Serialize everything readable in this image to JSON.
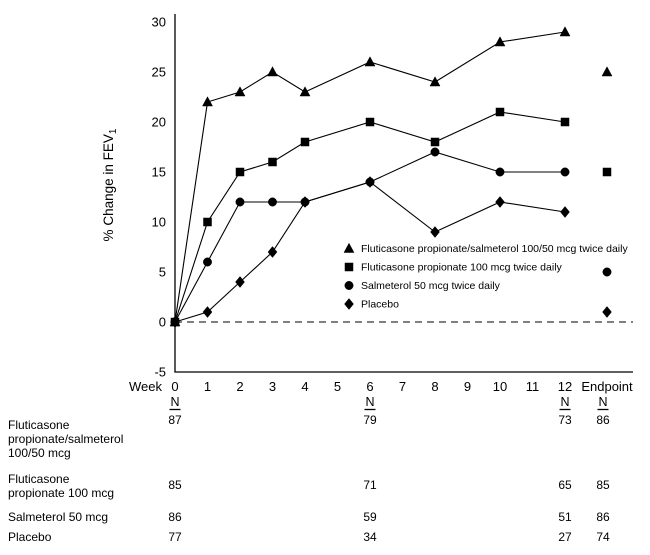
{
  "figure": {
    "ylabel": "% Change in FEV",
    "ylabel_sub": "1"
  },
  "chart_data": {
    "type": "line",
    "title": "",
    "xlabel": "Week",
    "ylabel": "% Change in FEV1",
    "ylim": [
      -5,
      30
    ],
    "yticks": [
      -5,
      0,
      5,
      10,
      15,
      20,
      25,
      30
    ],
    "xticks": [
      0,
      1,
      2,
      3,
      4,
      5,
      6,
      7,
      8,
      9,
      10,
      11,
      12
    ],
    "x_endpoint_label": "Endpoint",
    "grid": false,
    "zero_reference_line": "dashed",
    "legend_position": "inside lower right",
    "series": [
      {
        "name": "Fluticasone propionate/salmeterol 100/50 mcg twice daily",
        "marker": "triangle",
        "weeks": [
          0,
          1,
          2,
          3,
          4,
          6,
          8,
          10,
          12
        ],
        "values": [
          0,
          22,
          23,
          25,
          23,
          26,
          24,
          28,
          29
        ],
        "endpoint": 25
      },
      {
        "name": "Fluticasone propionate 100 mcg twice daily",
        "marker": "square",
        "weeks": [
          0,
          1,
          2,
          3,
          4,
          6,
          8,
          10,
          12
        ],
        "values": [
          0,
          10,
          15,
          16,
          18,
          20,
          18,
          21,
          20
        ],
        "endpoint": 15
      },
      {
        "name": "Salmeterol 50 mcg twice daily",
        "marker": "circle",
        "weeks": [
          0,
          1,
          2,
          3,
          4,
          6,
          8,
          10,
          12
        ],
        "values": [
          0,
          6,
          12,
          12,
          12,
          14,
          17,
          15,
          15
        ],
        "endpoint": 5
      },
      {
        "name": "Placebo",
        "marker": "diamond",
        "weeks": [
          0,
          1,
          2,
          3,
          4,
          6,
          8,
          10,
          12
        ],
        "values": [
          0,
          1,
          4,
          7,
          12,
          14,
          9,
          12,
          11
        ],
        "endpoint": 1
      }
    ],
    "n_table": {
      "header": "N",
      "column_weeks": [
        0,
        6,
        12,
        "Endpoint"
      ],
      "rows": [
        {
          "label_lines": [
            "Fluticasone",
            "propionate/salmeterol",
            "100/50 mcg"
          ],
          "values": [
            "87",
            "79",
            "73",
            "86"
          ]
        },
        {
          "label_lines": [
            "Fluticasone",
            "propionate 100 mcg"
          ],
          "values": [
            "85",
            "71",
            "65",
            "85"
          ]
        },
        {
          "label_lines": [
            "Salmeterol 50 mcg"
          ],
          "values": [
            "86",
            "59",
            "51",
            "86"
          ]
        },
        {
          "label_lines": [
            "Placebo"
          ],
          "values": [
            "77",
            "34",
            "27",
            "74"
          ]
        }
      ]
    }
  }
}
